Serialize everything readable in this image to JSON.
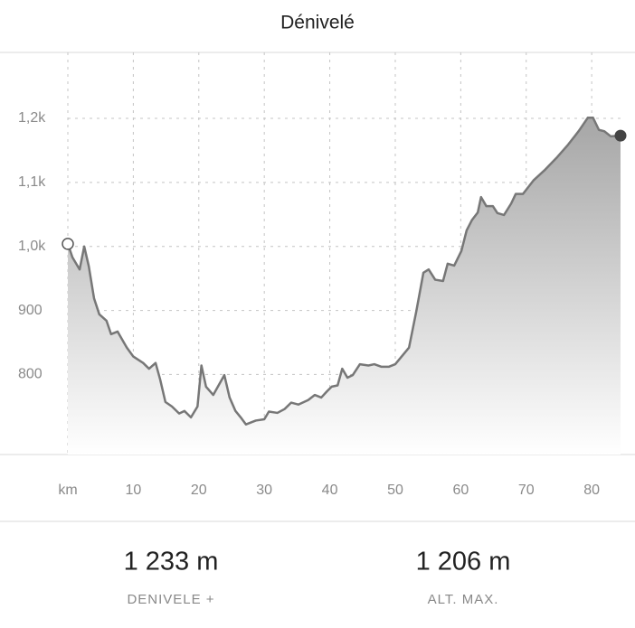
{
  "chart_data": {
    "type": "area",
    "title": "Dénivelé",
    "x": [
      0,
      0.7,
      1.8,
      2.5,
      3.2,
      4,
      4.8,
      5.9,
      6.6,
      7.6,
      9,
      10,
      11.5,
      12.4,
      13.4,
      14.1,
      14.9,
      15.9,
      17,
      17.8,
      18.8,
      19.8,
      20.4,
      21.1,
      22.2,
      23.9,
      24.7,
      25.6,
      26.4,
      27.2,
      28.7,
      30,
      30.7,
      32,
      33.1,
      34.1,
      35.2,
      36.7,
      37.7,
      38.7,
      39.6,
      40.3,
      41.2,
      41.9,
      42.7,
      43.5,
      44.6,
      45.9,
      46.8,
      47.9,
      49,
      50,
      52.1,
      53.2,
      54.3,
      55.1,
      56.1,
      57.3,
      58,
      59,
      60.1,
      60.9,
      61.7,
      62.6,
      63.1,
      63.9,
      64.9,
      65.6,
      66.6,
      67.7,
      68.4,
      69.5,
      71.1,
      72.9,
      74.6,
      76.4,
      78,
      79.4,
      80.2,
      81.1,
      81.9,
      82.9,
      84.4
    ],
    "values": [
      1004,
      983,
      964,
      1000,
      969,
      919,
      894,
      884,
      863,
      867,
      842,
      828,
      818,
      809,
      818,
      792,
      757,
      750,
      739,
      743,
      733,
      750,
      814,
      781,
      768,
      799,
      764,
      743,
      733,
      722,
      728,
      730,
      742,
      740,
      746,
      756,
      753,
      760,
      768,
      764,
      774,
      781,
      783,
      809,
      795,
      799,
      816,
      814,
      816,
      812,
      812,
      816,
      842,
      898,
      959,
      964,
      948,
      946,
      973,
      970,
      993,
      1025,
      1041,
      1053,
      1077,
      1063,
      1063,
      1052,
      1049,
      1067,
      1082,
      1082,
      1103,
      1120,
      1138,
      1159,
      1180,
      1201,
      1201,
      1182,
      1180,
      1172,
      1173
    ],
    "color": "#777777",
    "xlim": [
      0,
      84.4
    ],
    "xticks": [
      {
        "value": 0,
        "label": "km"
      },
      10,
      20,
      30,
      40,
      50,
      60,
      70,
      80
    ],
    "ylim": [
      675,
      1303
    ],
    "yticks": [
      800,
      900,
      {
        "value": 1000,
        "label": "1,0k"
      },
      {
        "value": 1100,
        "label": "1,1k"
      },
      {
        "value": 1200,
        "label": "1,2k"
      }
    ],
    "grid": true
  },
  "stats": [
    {
      "value": "1 233 m",
      "label": "DENIVELE +"
    },
    {
      "value": "1 206 m",
      "label": "ALT. MAX."
    }
  ]
}
